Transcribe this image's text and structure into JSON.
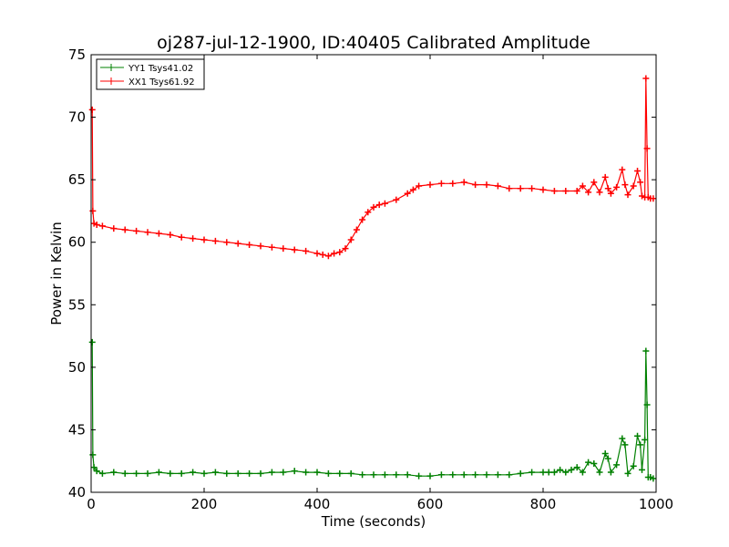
{
  "chart_data": {
    "type": "line",
    "title": "oj287-jul-12-1900, ID:40405 Calibrated Amplitude",
    "xlabel": "Time (seconds)",
    "ylabel": "Power in Kelvin",
    "xlim": [
      0,
      1000
    ],
    "ylim": [
      40,
      75
    ],
    "xticks": [
      0,
      200,
      400,
      600,
      800,
      1000
    ],
    "yticks": [
      40,
      45,
      50,
      55,
      60,
      65,
      70,
      75
    ],
    "grid": false,
    "legend_position": "top-left",
    "series": [
      {
        "name": "YY1 Tsys41.02",
        "color": "#008000",
        "marker": "+",
        "points": [
          [
            2,
            52.0
          ],
          [
            3,
            43.0
          ],
          [
            5,
            42.0
          ],
          [
            10,
            41.7
          ],
          [
            20,
            41.5
          ],
          [
            40,
            41.6
          ],
          [
            60,
            41.5
          ],
          [
            80,
            41.5
          ],
          [
            100,
            41.5
          ],
          [
            120,
            41.6
          ],
          [
            140,
            41.5
          ],
          [
            160,
            41.5
          ],
          [
            180,
            41.6
          ],
          [
            200,
            41.5
          ],
          [
            220,
            41.6
          ],
          [
            240,
            41.5
          ],
          [
            260,
            41.5
          ],
          [
            280,
            41.5
          ],
          [
            300,
            41.5
          ],
          [
            320,
            41.6
          ],
          [
            340,
            41.6
          ],
          [
            360,
            41.7
          ],
          [
            380,
            41.6
          ],
          [
            400,
            41.6
          ],
          [
            420,
            41.5
          ],
          [
            440,
            41.5
          ],
          [
            460,
            41.5
          ],
          [
            480,
            41.4
          ],
          [
            500,
            41.4
          ],
          [
            520,
            41.4
          ],
          [
            540,
            41.4
          ],
          [
            560,
            41.4
          ],
          [
            580,
            41.3
          ],
          [
            600,
            41.3
          ],
          [
            620,
            41.4
          ],
          [
            640,
            41.4
          ],
          [
            660,
            41.4
          ],
          [
            680,
            41.4
          ],
          [
            700,
            41.4
          ],
          [
            720,
            41.4
          ],
          [
            740,
            41.4
          ],
          [
            760,
            41.5
          ],
          [
            780,
            41.6
          ],
          [
            800,
            41.6
          ],
          [
            810,
            41.6
          ],
          [
            820,
            41.6
          ],
          [
            830,
            41.8
          ],
          [
            840,
            41.6
          ],
          [
            850,
            41.8
          ],
          [
            860,
            42.0
          ],
          [
            870,
            41.6
          ],
          [
            880,
            42.4
          ],
          [
            890,
            42.3
          ],
          [
            900,
            41.6
          ],
          [
            910,
            43.1
          ],
          [
            915,
            42.7
          ],
          [
            920,
            41.6
          ],
          [
            930,
            42.2
          ],
          [
            940,
            44.3
          ],
          [
            945,
            43.8
          ],
          [
            950,
            41.5
          ],
          [
            960,
            42.1
          ],
          [
            967,
            44.5
          ],
          [
            972,
            43.8
          ],
          [
            975,
            41.8
          ],
          [
            980,
            44.2
          ],
          [
            982,
            51.3
          ],
          [
            984,
            47.0
          ],
          [
            986,
            41.2
          ],
          [
            990,
            41.2
          ],
          [
            995,
            41.1
          ]
        ]
      },
      {
        "name": "XX1 Tsys61.92",
        "color": "#ff0000",
        "marker": "+",
        "points": [
          [
            2,
            70.6
          ],
          [
            3,
            62.5
          ],
          [
            5,
            61.5
          ],
          [
            10,
            61.4
          ],
          [
            20,
            61.3
          ],
          [
            40,
            61.1
          ],
          [
            60,
            61.0
          ],
          [
            80,
            60.9
          ],
          [
            100,
            60.8
          ],
          [
            120,
            60.7
          ],
          [
            140,
            60.6
          ],
          [
            160,
            60.4
          ],
          [
            180,
            60.3
          ],
          [
            200,
            60.2
          ],
          [
            220,
            60.1
          ],
          [
            240,
            60.0
          ],
          [
            260,
            59.9
          ],
          [
            280,
            59.8
          ],
          [
            300,
            59.7
          ],
          [
            320,
            59.6
          ],
          [
            340,
            59.5
          ],
          [
            360,
            59.4
          ],
          [
            380,
            59.3
          ],
          [
            400,
            59.1
          ],
          [
            410,
            59.0
          ],
          [
            420,
            58.9
          ],
          [
            430,
            59.1
          ],
          [
            440,
            59.2
          ],
          [
            450,
            59.5
          ],
          [
            460,
            60.2
          ],
          [
            470,
            61.0
          ],
          [
            480,
            61.8
          ],
          [
            490,
            62.4
          ],
          [
            500,
            62.8
          ],
          [
            510,
            63.0
          ],
          [
            520,
            63.1
          ],
          [
            540,
            63.4
          ],
          [
            560,
            63.9
          ],
          [
            570,
            64.2
          ],
          [
            580,
            64.5
          ],
          [
            600,
            64.6
          ],
          [
            620,
            64.7
          ],
          [
            640,
            64.7
          ],
          [
            660,
            64.8
          ],
          [
            680,
            64.6
          ],
          [
            700,
            64.6
          ],
          [
            720,
            64.5
          ],
          [
            740,
            64.3
          ],
          [
            760,
            64.3
          ],
          [
            780,
            64.3
          ],
          [
            800,
            64.2
          ],
          [
            820,
            64.1
          ],
          [
            840,
            64.1
          ],
          [
            860,
            64.1
          ],
          [
            870,
            64.5
          ],
          [
            880,
            64.0
          ],
          [
            890,
            64.8
          ],
          [
            900,
            64.0
          ],
          [
            910,
            65.2
          ],
          [
            915,
            64.3
          ],
          [
            920,
            63.9
          ],
          [
            930,
            64.4
          ],
          [
            940,
            65.8
          ],
          [
            945,
            64.6
          ],
          [
            950,
            63.8
          ],
          [
            960,
            64.5
          ],
          [
            967,
            65.7
          ],
          [
            972,
            64.8
          ],
          [
            975,
            63.7
          ],
          [
            980,
            63.6
          ],
          [
            982,
            73.1
          ],
          [
            984,
            67.5
          ],
          [
            986,
            63.6
          ],
          [
            990,
            63.5
          ],
          [
            995,
            63.5
          ]
        ]
      }
    ]
  }
}
